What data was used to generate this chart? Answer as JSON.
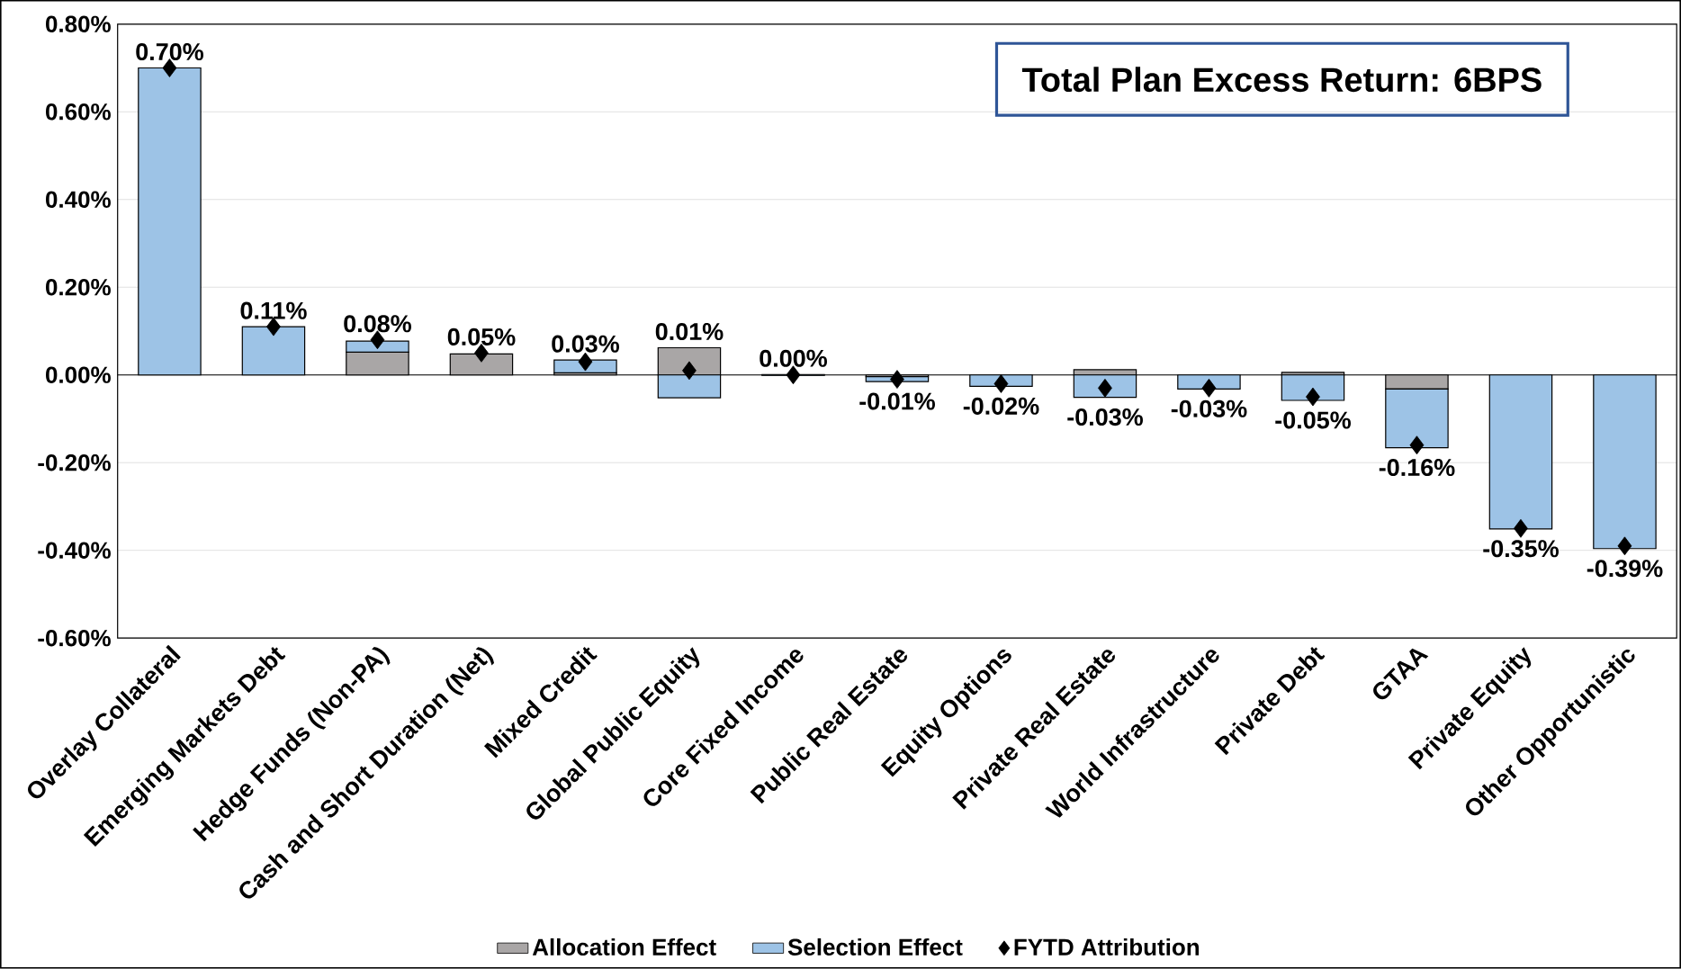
{
  "chart_data": {
    "type": "bar",
    "stacked": true,
    "categories": [
      "Overlay Collateral",
      "Emerging Markets Debt",
      "Hedge Funds (Non-PA)",
      "Cash and Short Duration (Net)",
      "Mixed Credit",
      "Global Public Equity",
      "Core Fixed Income",
      "Public Real Estate",
      "Equity Options",
      "Private Real Estate",
      "World Infrastructure",
      "Private Debt",
      "GTAA",
      "Private Equity",
      "Other Opportunistic"
    ],
    "series": [
      {
        "name": "Allocation Effect",
        "color": "#a9a6a6",
        "values": [
          0,
          null,
          0.052,
          0.048,
          0.005,
          0.062,
          0.001,
          -0.004,
          null,
          0.012,
          0,
          0.006,
          -0.032,
          null,
          null
        ]
      },
      {
        "name": "Selection Effect",
        "color": "#9dc3e6",
        "values": [
          0.7,
          0.11,
          0.025,
          0,
          0.029,
          -0.052,
          -0.001,
          -0.011,
          -0.026,
          -0.051,
          -0.032,
          -0.058,
          -0.134,
          -0.351,
          -0.396
        ]
      },
      {
        "name": "FYTD Attribution",
        "type": "scatter",
        "color": "#000000",
        "marker": "diamond",
        "values": [
          0.7,
          0.11,
          0.08,
          0.05,
          0.03,
          0.01,
          0.0,
          -0.01,
          -0.02,
          -0.03,
          -0.03,
          -0.05,
          -0.16,
          -0.35,
          -0.39
        ],
        "value_labels": [
          "0.70%",
          "0.11%",
          "0.08%",
          "0.05%",
          "0.03%",
          "0.01%",
          "0.00%",
          "-0.01%",
          "-0.02%",
          "-0.03%",
          "-0.03%",
          "-0.05%",
          "-0.16%",
          "-0.35%",
          "-0.39%"
        ]
      }
    ],
    "ylim": [
      -0.6,
      0.8
    ],
    "yticks": [
      {
        "value": -0.6,
        "label": "-0.60%"
      },
      {
        "value": -0.4,
        "label": "-0.40%"
      },
      {
        "value": -0.2,
        "label": "-0.20%"
      },
      {
        "value": 0,
        "label": "0.00%"
      },
      {
        "value": 0.2,
        "label": "0.20%"
      },
      {
        "value": 0.4,
        "label": "0.40%"
      },
      {
        "value": 0.6,
        "label": "0.60%"
      },
      {
        "value": 0.8,
        "label": "0.80%"
      }
    ],
    "grid": "y",
    "legend": "bottom",
    "annotations": [
      "Total Plan Excess Return: 6BPS"
    ]
  }
}
